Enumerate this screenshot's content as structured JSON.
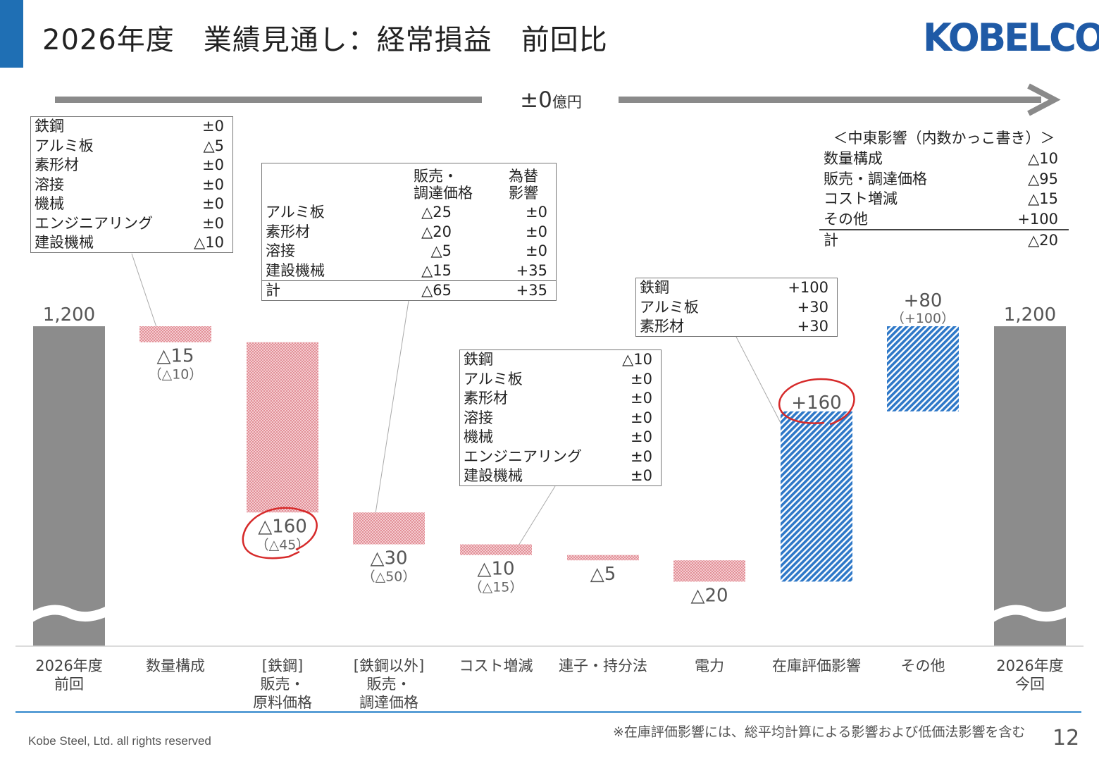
{
  "header": {
    "title": "2026年度　業績見通し：経常損益　前回比",
    "logo_text": "KOBELCO"
  },
  "total_change": "±0",
  "total_change_unit": "億円",
  "colors": {
    "accent": "#1f6fb4",
    "total_bar": "#8c8c8c",
    "negative": "#e7a3a9",
    "positive": "#2e78c8",
    "circle": "#d62a2a",
    "arrow": "#8a8a8a"
  },
  "chart_data": {
    "type": "bar",
    "subtype": "waterfall",
    "categories": [
      "2026年度前回",
      "数量構成",
      "[鉄鋼]販売・原料価格",
      "[鉄鋼以外]販売・調達価格",
      "コスト増減",
      "連子・持分法",
      "電力",
      "在庫評価影響",
      "その他",
      "2026年度今回"
    ],
    "category_lines": [
      [
        "2026年度",
        "前回"
      ],
      [
        "数量構成"
      ],
      [
        "[鉄鋼]",
        "販売・",
        "原料価格"
      ],
      [
        "[鉄鋼以外]",
        "販売・",
        "調達価格"
      ],
      [
        "コスト増減"
      ],
      [
        "連子・持分法"
      ],
      [
        "電力"
      ],
      [
        "在庫評価影響"
      ],
      [
        "その他"
      ],
      [
        "2026年度",
        "今回"
      ]
    ],
    "values": [
      1200,
      -15,
      -160,
      -30,
      -10,
      -5,
      -20,
      160,
      80,
      1200
    ],
    "bar_kind": [
      "total",
      "neg",
      "neg",
      "neg",
      "neg",
      "neg",
      "neg",
      "pos",
      "pos",
      "total"
    ],
    "value_labels": [
      "1,200",
      "△15",
      "△160",
      "△30",
      "△10",
      "△5",
      "△20",
      "+160",
      "+80",
      "1,200"
    ],
    "sub_labels": [
      "",
      "（△10）",
      "（△45）",
      "（△50）",
      "（△15）",
      "",
      "",
      "",
      "（+100）",
      ""
    ],
    "circled": [
      2,
      7
    ],
    "axis_break": true,
    "unit": "億円"
  },
  "segment_box_volume": {
    "rows": [
      {
        "label": "鉄鋼",
        "value": "±0"
      },
      {
        "label": "アルミ板",
        "value": "△5"
      },
      {
        "label": "素形材",
        "value": "±0"
      },
      {
        "label": "溶接",
        "value": "±0"
      },
      {
        "label": "機械",
        "value": "±0"
      },
      {
        "label": "エンジニアリング",
        "value": "±0"
      },
      {
        "label": "建設機械",
        "value": "△10"
      }
    ]
  },
  "segment_box_price": {
    "col1_header": [
      "販売・",
      "調達価格"
    ],
    "col2_header": [
      "為替",
      "影響"
    ],
    "rows": [
      {
        "label": "アルミ板",
        "v1": "△25",
        "v2": "±0"
      },
      {
        "label": "素形材",
        "v1": "△20",
        "v2": "±0"
      },
      {
        "label": "溶接",
        "v1": "△5",
        "v2": "±0"
      },
      {
        "label": "建設機械",
        "v1": "△15",
        "v2": "+35"
      }
    ],
    "total": {
      "label": "計",
      "v1": "△65",
      "v2": "+35"
    }
  },
  "segment_box_cost": {
    "rows": [
      {
        "label": "鉄鋼",
        "value": "△10"
      },
      {
        "label": "アルミ板",
        "value": "±0"
      },
      {
        "label": "素形材",
        "value": "±0"
      },
      {
        "label": "溶接",
        "value": "±0"
      },
      {
        "label": "機械",
        "value": "±0"
      },
      {
        "label": "エンジニアリング",
        "value": "±0"
      },
      {
        "label": "建設機械",
        "value": "±0"
      }
    ]
  },
  "segment_box_inventory": {
    "rows": [
      {
        "label": "鉄鋼",
        "value": "+100"
      },
      {
        "label": "アルミ板",
        "value": "+30"
      },
      {
        "label": "素形材",
        "value": "+30"
      }
    ]
  },
  "middle_east": {
    "title": "＜中東影響（内数かっこ書き）＞",
    "rows": [
      {
        "label": "数量構成",
        "value": "△10"
      },
      {
        "label": "販売・調達価格",
        "value": "△95"
      },
      {
        "label": "コスト増減",
        "value": "△15"
      },
      {
        "label": "その他",
        "value": "+100"
      }
    ],
    "total": {
      "label": "計",
      "value": "△20"
    }
  },
  "footer": {
    "copyright": "Kobe Steel, Ltd.  all rights reserved",
    "note": "※在庫評価影響には、総平均計算による影響および低価法影響を含む",
    "page": "12"
  }
}
